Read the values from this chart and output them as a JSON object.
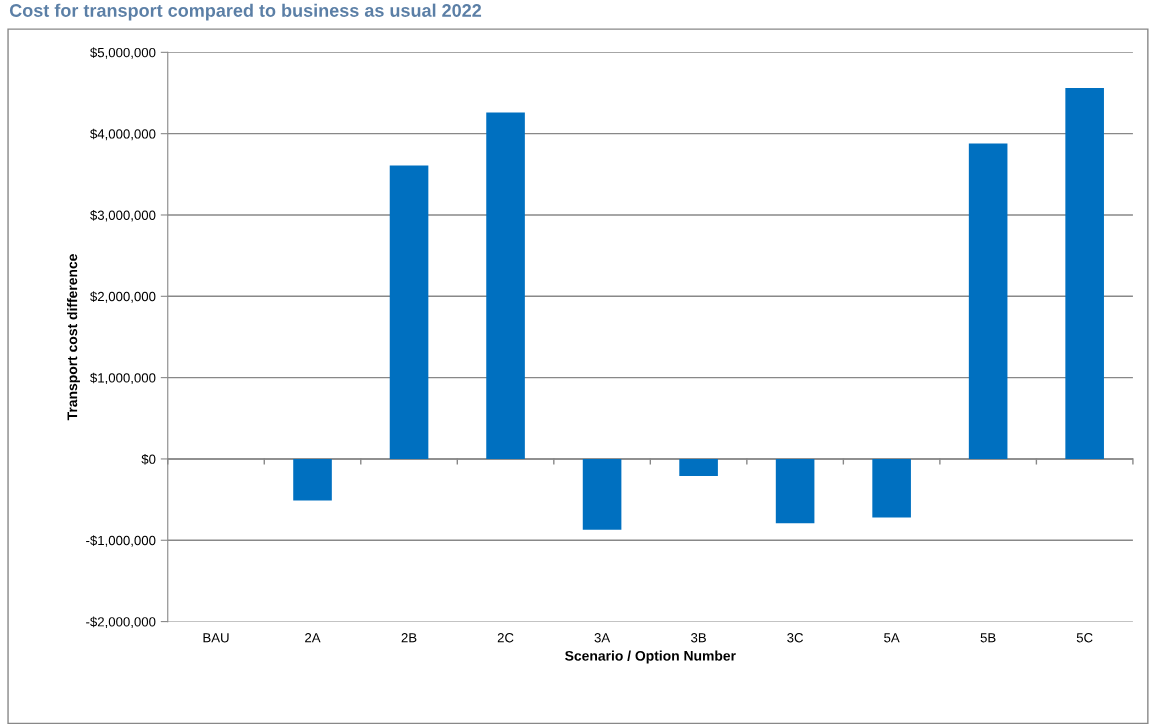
{
  "chart_data": {
    "type": "bar",
    "title": "Cost for transport compared to business as usual 2022",
    "xlabel": "Scenario / Option Number",
    "ylabel": "Transport cost difference",
    "categories": [
      "BAU",
      "2A",
      "2B",
      "2C",
      "3A",
      "3B",
      "3C",
      "5A",
      "5B",
      "5C"
    ],
    "values": [
      0,
      -510000,
      3610000,
      4260000,
      -870000,
      -210000,
      -790000,
      -720000,
      3880000,
      4560000
    ],
    "color": "#0070c0",
    "ylim": [
      -2000000,
      5000000
    ],
    "yticks": [
      {
        "value": -2000000,
        "label": "-$2,000,000"
      },
      {
        "value": -1000000,
        "label": "-$1,000,000"
      },
      {
        "value": 0,
        "label": "$0"
      },
      {
        "value": 1000000,
        "label": "$1,000,000"
      },
      {
        "value": 2000000,
        "label": "$2,000,000"
      },
      {
        "value": 3000000,
        "label": "$3,000,000"
      },
      {
        "value": 4000000,
        "label": "$4,000,000"
      },
      {
        "value": 5000000,
        "label": "$5,000,000"
      }
    ],
    "grid": "y",
    "legend": false
  }
}
